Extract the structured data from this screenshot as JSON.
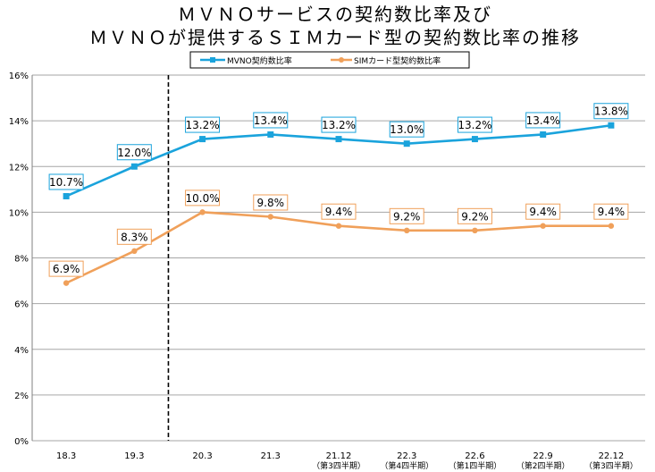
{
  "chart_data": {
    "type": "line",
    "title": [
      "ＭＶＮＯサービスの契約数比率及び",
      "ＭＶＮＯが提供するＳＩＭカード型の契約数比率の推移"
    ],
    "categories": [
      "18.3",
      "19.3",
      "20.3",
      "21.3",
      "21.12",
      "22.3",
      "22.6",
      "22.9",
      "22.12"
    ],
    "category_sublabels": [
      "",
      "",
      "",
      "",
      "（第3四半期）",
      "（第4四半期）",
      "（第1四半期）",
      "（第2四半期）",
      "（第3四半期）"
    ],
    "ylim": [
      0,
      16
    ],
    "yticks": [
      0,
      2,
      4,
      6,
      8,
      10,
      12,
      14,
      16
    ],
    "ytick_labels": [
      "0%",
      "2%",
      "4%",
      "6%",
      "8%",
      "10%",
      "12%",
      "14%",
      "16%"
    ],
    "grid": true,
    "divider_after_category_index": 1,
    "series": [
      {
        "name": "MVNO契約数比率",
        "color": "#1aa3dc",
        "marker": "square",
        "values": [
          10.7,
          12.0,
          13.2,
          13.4,
          13.2,
          13.0,
          13.2,
          13.4,
          13.8
        ],
        "data_labels": [
          "10.7%",
          "12.0%",
          "13.2%",
          "13.4%",
          "13.2%",
          "13.0%",
          "13.2%",
          "13.4%",
          "13.8%"
        ]
      },
      {
        "name": "SIMカード型契約数比率",
        "color": "#f0a05a",
        "marker": "circle",
        "values": [
          6.9,
          8.3,
          10.0,
          9.8,
          9.4,
          9.2,
          9.2,
          9.4,
          9.4
        ],
        "data_labels": [
          "6.9%",
          "8.3%",
          "10.0%",
          "9.8%",
          "9.4%",
          "9.2%",
          "9.2%",
          "9.4%",
          "9.4%"
        ]
      }
    ]
  }
}
